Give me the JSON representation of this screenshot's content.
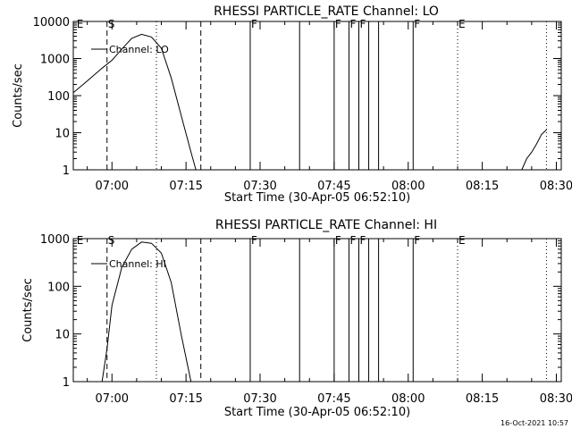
{
  "footer_timestamp": "16-Oct-2021 10:57",
  "chart_data": [
    {
      "type": "line",
      "title": "RHESSI PARTICLE_RATE Channel: LO",
      "xlabel": "Start Time (30-Apr-05 06:52:10)",
      "ylabel": "Counts/sec",
      "yscale": "log",
      "ylim": [
        1,
        10000
      ],
      "xlim": [
        "06:52:10",
        "08:31"
      ],
      "x_ticks": [
        "07:00",
        "07:15",
        "07:30",
        "07:45",
        "08:00",
        "08:15",
        "08:30"
      ],
      "y_ticks": [
        "1",
        "10",
        "100",
        "1000",
        "10000"
      ],
      "legend": "top-left",
      "grid": false,
      "series": [
        {
          "name": "Channel: LO",
          "x": [
            "06:52:10",
            "06:55",
            "06:58",
            "07:00",
            "07:02",
            "07:04",
            "07:06",
            "07:08",
            "07:10",
            "07:12",
            "07:14",
            "07:16",
            "07:17"
          ],
          "y": [
            120,
            250,
            550,
            900,
            1800,
            3500,
            4500,
            3800,
            1900,
            300,
            30,
            3,
            1
          ],
          "x2": [
            "08:23",
            "08:24",
            "08:25",
            "08:26",
            "08:27",
            "08:28"
          ],
          "y2": [
            1,
            2,
            3,
            5,
            9,
            12
          ]
        }
      ],
      "markers": [
        {
          "time": "06:52:40",
          "label": "E",
          "style": "none"
        },
        {
          "time": "06:59",
          "label": "S",
          "style": "dashed"
        },
        {
          "time": "07:09",
          "label": "",
          "style": "dotted"
        },
        {
          "time": "07:18",
          "label": "",
          "style": "dashed"
        },
        {
          "time": "07:28",
          "label": "F",
          "style": "solid"
        },
        {
          "time": "07:38",
          "label": "",
          "style": "solid"
        },
        {
          "time": "07:45",
          "label": "F",
          "style": "solid"
        },
        {
          "time": "07:48",
          "label": "F",
          "style": "solid"
        },
        {
          "time": "07:50",
          "label": "F",
          "style": "solid"
        },
        {
          "time": "07:52",
          "label": "",
          "style": "solid"
        },
        {
          "time": "07:54",
          "label": "",
          "style": "solid"
        },
        {
          "time": "08:01",
          "label": "F",
          "style": "solid"
        },
        {
          "time": "08:10",
          "label": "E",
          "style": "dotted"
        },
        {
          "time": "08:28",
          "label": "",
          "style": "dotted"
        }
      ]
    },
    {
      "type": "line",
      "title": "RHESSI PARTICLE_RATE Channel: HI",
      "xlabel": "Start Time (30-Apr-05 06:52:10)",
      "ylabel": "Counts/sec",
      "yscale": "log",
      "ylim": [
        1,
        1000
      ],
      "xlim": [
        "06:52:10",
        "08:31"
      ],
      "x_ticks": [
        "07:00",
        "07:15",
        "07:30",
        "07:45",
        "08:00",
        "08:15",
        "08:30"
      ],
      "y_ticks": [
        "1",
        "10",
        "100",
        "1000"
      ],
      "legend": "top-left",
      "grid": false,
      "series": [
        {
          "name": "Channel: HI",
          "x": [
            "06:58",
            "06:59",
            "07:00",
            "07:02",
            "07:04",
            "07:06",
            "07:08",
            "07:10",
            "07:12",
            "07:14",
            "07:16"
          ],
          "y": [
            1,
            5,
            40,
            250,
            600,
            850,
            800,
            500,
            120,
            10,
            1
          ]
        }
      ],
      "markers": [
        {
          "time": "06:52:40",
          "label": "E",
          "style": "none"
        },
        {
          "time": "06:59",
          "label": "S",
          "style": "dashed"
        },
        {
          "time": "07:09",
          "label": "",
          "style": "dotted"
        },
        {
          "time": "07:18",
          "label": "",
          "style": "dashed"
        },
        {
          "time": "07:28",
          "label": "F",
          "style": "solid"
        },
        {
          "time": "07:38",
          "label": "",
          "style": "solid"
        },
        {
          "time": "07:45",
          "label": "F",
          "style": "solid"
        },
        {
          "time": "07:48",
          "label": "F",
          "style": "solid"
        },
        {
          "time": "07:50",
          "label": "F",
          "style": "solid"
        },
        {
          "time": "07:52",
          "label": "",
          "style": "solid"
        },
        {
          "time": "07:54",
          "label": "",
          "style": "solid"
        },
        {
          "time": "08:01",
          "label": "F",
          "style": "solid"
        },
        {
          "time": "08:10",
          "label": "E",
          "style": "dotted"
        },
        {
          "time": "08:28",
          "label": "",
          "style": "dotted"
        }
      ]
    }
  ]
}
